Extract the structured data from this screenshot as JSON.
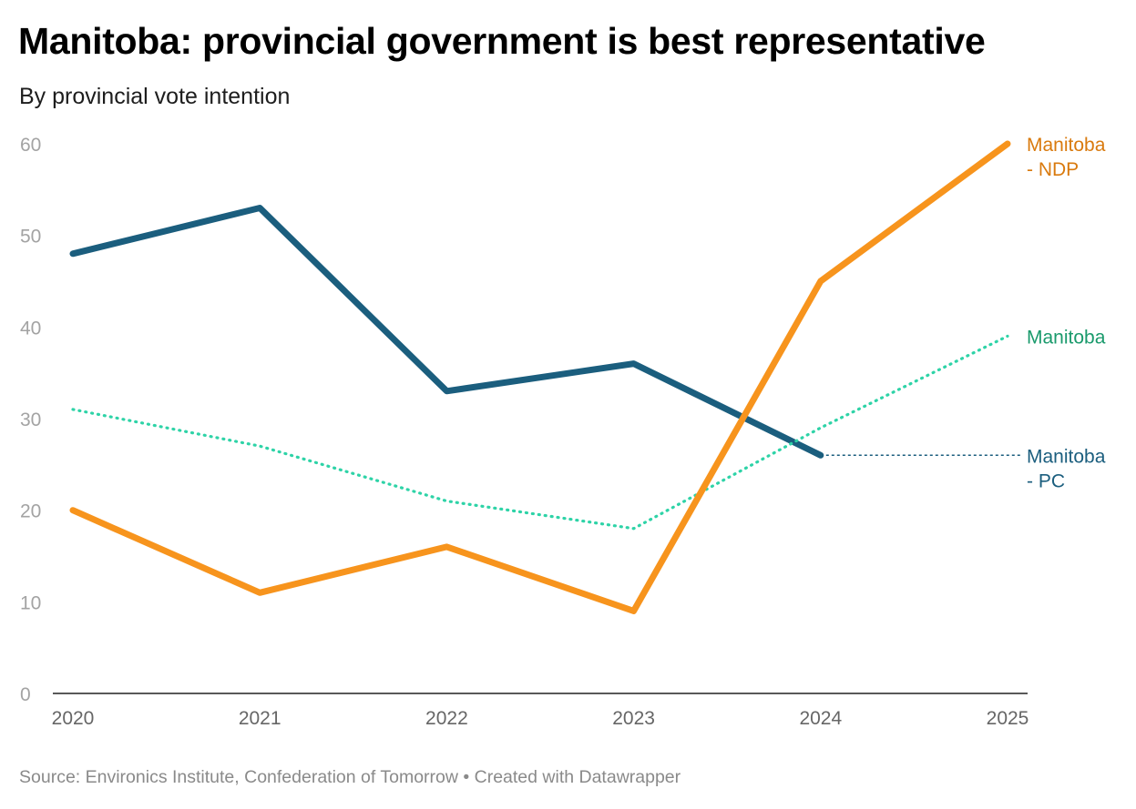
{
  "chart_data": {
    "type": "line",
    "title": "Manitoba: provincial government is best representative",
    "subtitle": "By provincial vote intention",
    "xlabel": "",
    "ylabel": "",
    "x": [
      "2020",
      "2021",
      "2022",
      "2023",
      "2024",
      "2025"
    ],
    "ylim": [
      0,
      60
    ],
    "yticks": [
      "0",
      "10",
      "20",
      "30",
      "40",
      "50",
      "60"
    ],
    "grid": false,
    "series": [
      {
        "name": "Manitoba - PC",
        "label_lines": [
          "Manitoba",
          "- PC"
        ],
        "values": [
          48,
          53,
          33,
          36,
          26,
          null
        ],
        "color": "#1b5e7e",
        "style": "solid",
        "extension": "dotted line from 2024 value to 2025 label"
      },
      {
        "name": "Manitoba - NDP",
        "label_lines": [
          "Manitoba",
          "- NDP"
        ],
        "values": [
          20,
          11,
          16,
          9,
          45,
          60
        ],
        "color": "#f7941d",
        "label_color": "#d97a0e",
        "style": "solid"
      },
      {
        "name": "Manitoba",
        "label_lines": [
          "Manitoba"
        ],
        "values": [
          31,
          27,
          21,
          18,
          29,
          39
        ],
        "color": "#2ed3a7",
        "label_color": "#1a9a6c",
        "style": "dotted"
      }
    ],
    "source": "Source: Environics Institute, Confederation of Tomorrow • Created with Datawrapper"
  }
}
